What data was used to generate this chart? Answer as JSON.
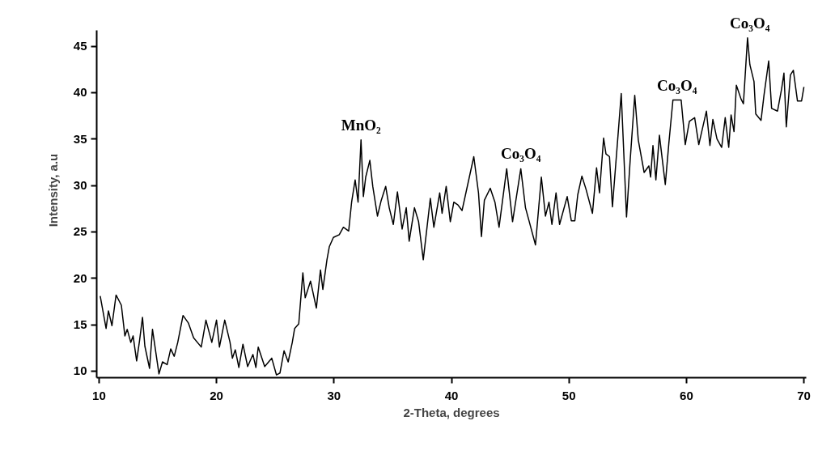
{
  "chart_data": {
    "type": "line",
    "xlabel": "2-Theta, degrees",
    "ylabel": "Intensity, a.u",
    "xlim": [
      9.8,
      70.2
    ],
    "ylim": [
      9.3,
      46.7
    ],
    "xticks": [
      10,
      20,
      30,
      40,
      50,
      60,
      70
    ],
    "yticks": [
      10,
      15,
      20,
      25,
      30,
      35,
      40,
      45
    ],
    "grid": false,
    "marker": "none",
    "line_style": "solid",
    "series": [
      {
        "color": "#000000",
        "x": [
          10.1,
          10.6,
          10.8,
          11.1,
          11.45,
          11.9,
          12.2,
          12.4,
          12.7,
          12.9,
          13.2,
          13.45,
          13.7,
          13.9,
          14.3,
          14.55,
          15.1,
          15.4,
          15.8,
          16.1,
          16.4,
          16.7,
          17.15,
          17.6,
          18.05,
          18.7,
          19.1,
          19.6,
          20.0,
          20.25,
          20.7,
          21.15,
          21.35,
          21.6,
          21.9,
          22.25,
          22.65,
          23.1,
          23.35,
          23.55,
          24.1,
          24.7,
          25.1,
          25.4,
          25.75,
          26.1,
          26.45,
          26.65,
          27.0,
          27.35,
          27.55,
          28.0,
          28.5,
          28.85,
          29.05,
          29.4,
          29.6,
          29.95,
          30.45,
          30.8,
          31.25,
          31.5,
          31.8,
          32.05,
          32.3,
          32.5,
          32.7,
          33.05,
          33.3,
          33.7,
          34.0,
          34.4,
          34.7,
          35.05,
          35.4,
          35.8,
          36.15,
          36.4,
          36.85,
          37.2,
          37.6,
          38.2,
          38.5,
          39.0,
          39.2,
          39.55,
          39.9,
          40.2,
          40.55,
          40.9,
          41.4,
          41.9,
          42.3,
          42.55,
          42.8,
          43.3,
          43.7,
          44.05,
          44.7,
          45.2,
          45.9,
          46.3,
          46.6,
          47.15,
          47.65,
          48.0,
          48.3,
          48.55,
          48.9,
          49.2,
          49.85,
          50.2,
          50.5,
          50.75,
          51.1,
          51.45,
          52.0,
          52.35,
          52.6,
          52.95,
          53.15,
          53.45,
          53.7,
          54.25,
          54.45,
          54.9,
          55.2,
          55.6,
          55.9,
          56.4,
          56.8,
          56.95,
          57.15,
          57.4,
          57.7,
          58.2,
          58.5,
          58.85,
          59.55,
          59.9,
          60.25,
          60.7,
          61.05,
          61.7,
          62.0,
          62.25,
          62.6,
          63.0,
          63.3,
          63.6,
          63.8,
          64.05,
          64.25,
          64.65,
          64.85,
          65.2,
          65.4,
          65.75,
          65.9,
          66.35,
          66.6,
          67.0,
          67.25,
          67.75,
          68.1,
          68.3,
          68.5,
          68.85,
          69.1,
          69.45,
          69.8,
          70.0
        ],
        "values": [
          18.1,
          14.6,
          16.5,
          14.9,
          18.2,
          17.1,
          13.8,
          14.5,
          13.1,
          13.8,
          11.1,
          13.3,
          15.8,
          12.7,
          10.3,
          14.5,
          9.7,
          11.0,
          10.7,
          12.4,
          11.6,
          13.1,
          16.0,
          15.2,
          13.6,
          12.6,
          15.5,
          13.1,
          15.5,
          12.6,
          15.5,
          13.1,
          11.4,
          12.3,
          10.4,
          12.9,
          10.5,
          11.8,
          10.4,
          12.6,
          10.5,
          11.4,
          9.6,
          9.8,
          12.2,
          11.0,
          13.1,
          14.6,
          15.1,
          20.6,
          17.9,
          19.7,
          16.8,
          20.9,
          18.8,
          22.0,
          23.4,
          24.4,
          24.7,
          25.5,
          25.1,
          28.2,
          30.6,
          28.2,
          34.9,
          28.8,
          30.9,
          32.7,
          29.9,
          26.7,
          28.3,
          29.9,
          27.6,
          25.8,
          29.3,
          25.3,
          27.6,
          24.0,
          27.6,
          26.1,
          22.0,
          28.6,
          25.5,
          29.2,
          27.0,
          29.9,
          26.1,
          28.2,
          27.9,
          27.3,
          30.2,
          33.1,
          29.2,
          24.5,
          28.4,
          29.7,
          28.2,
          25.5,
          31.8,
          26.1,
          31.8,
          27.6,
          26.2,
          23.6,
          30.9,
          26.7,
          28.2,
          25.8,
          29.2,
          25.8,
          28.8,
          26.2,
          26.2,
          29.0,
          31.0,
          29.6,
          27.0,
          31.9,
          29.2,
          35.1,
          33.4,
          33.1,
          27.7,
          36.6,
          39.9,
          26.6,
          32.5,
          39.7,
          34.9,
          31.4,
          32.1,
          30.9,
          34.3,
          30.6,
          35.4,
          30.1,
          34.5,
          39.2,
          39.2,
          34.4,
          36.9,
          37.3,
          34.4,
          38.0,
          34.3,
          37.1,
          35.0,
          34.1,
          37.3,
          34.1,
          37.6,
          35.8,
          40.8,
          39.3,
          38.8,
          45.9,
          43.0,
          41.2,
          37.7,
          37.0,
          39.7,
          43.4,
          38.3,
          38.0,
          40.4,
          42.1,
          36.3,
          41.9,
          42.4,
          39.1,
          39.1,
          40.6
        ]
      }
    ],
    "annotations": [
      {
        "text": "MnO₂",
        "x": 32.3,
        "y": 34.9
      },
      {
        "text": "Co₃O₄",
        "x": 45.9,
        "y": 31.8
      },
      {
        "text": "Co₃O₄",
        "x": 59.2,
        "y": 39.2
      },
      {
        "text": "Co₃O₄",
        "x": 65.4,
        "y": 45.9
      }
    ]
  }
}
